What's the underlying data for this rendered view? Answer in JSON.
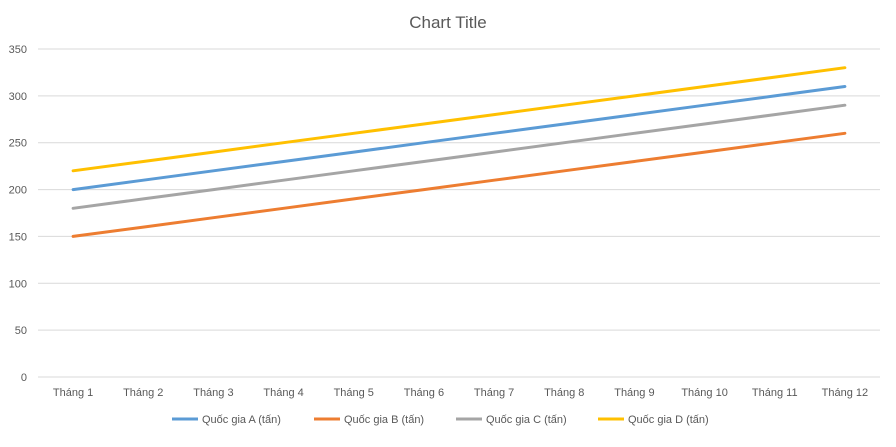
{
  "chart_data": {
    "type": "line",
    "title": "Chart Title",
    "xlabel": "",
    "ylabel": "",
    "ylim": [
      0,
      350
    ],
    "yticks": [
      0,
      50,
      100,
      150,
      200,
      250,
      300,
      350
    ],
    "grid": true,
    "legend_position": "bottom",
    "categories": [
      "Tháng 1",
      "Tháng 2",
      "Tháng 3",
      "Tháng 4",
      "Tháng 5",
      "Tháng 6",
      "Tháng 7",
      "Tháng 8",
      "Tháng 9",
      "Tháng 10",
      "Tháng 11",
      "Tháng 12"
    ],
    "series": [
      {
        "name": "Quốc gia A (tấn)",
        "color": "#5b9bd5",
        "values": [
          200,
          210,
          220,
          230,
          240,
          250,
          260,
          270,
          280,
          290,
          300,
          310
        ]
      },
      {
        "name": "Quốc gia B (tấn)",
        "color": "#ed7d31",
        "values": [
          150,
          160,
          170,
          180,
          190,
          200,
          210,
          220,
          230,
          240,
          250,
          260
        ]
      },
      {
        "name": "Quốc gia C (tấn)",
        "color": "#a5a5a5",
        "values": [
          180,
          190,
          200,
          210,
          220,
          230,
          240,
          250,
          260,
          270,
          280,
          290
        ]
      },
      {
        "name": "Quốc gia D (tấn)",
        "color": "#ffc000",
        "values": [
          220,
          230,
          240,
          250,
          260,
          270,
          280,
          290,
          300,
          310,
          320,
          330
        ]
      }
    ]
  }
}
